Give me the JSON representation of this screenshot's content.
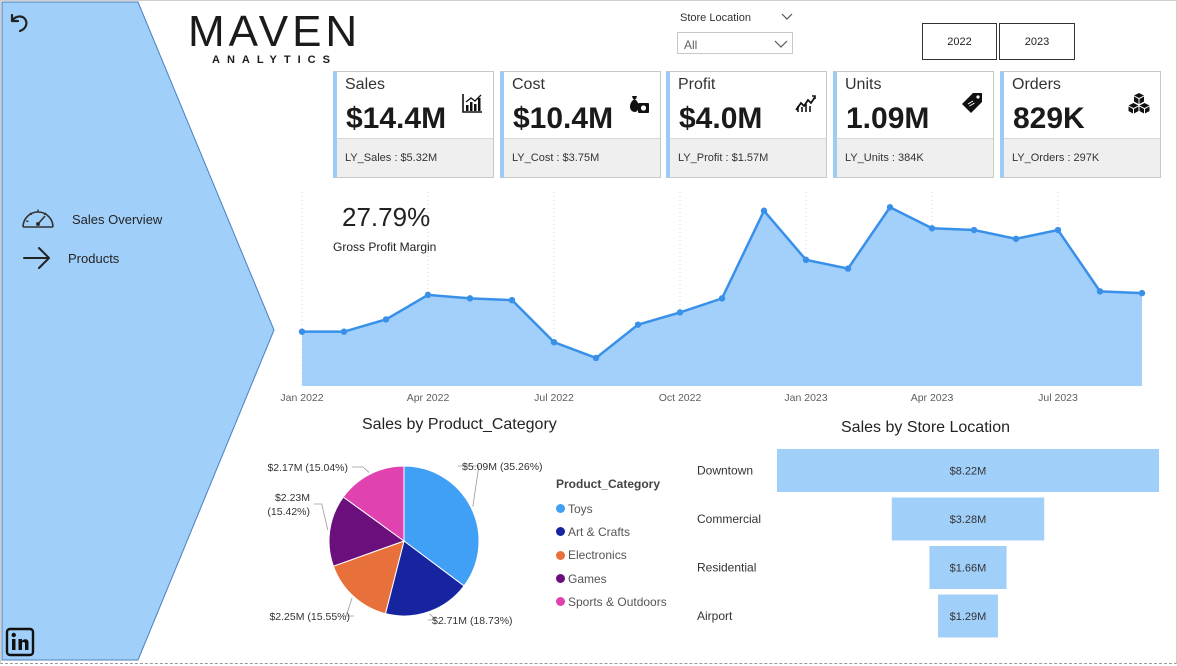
{
  "nav": {
    "items": [
      {
        "label": "Sales Overview",
        "icon": "speedometer-icon"
      },
      {
        "label": "Products",
        "icon": "arrow-right-icon"
      }
    ]
  },
  "logo": {
    "main": "MAVEN",
    "sub": "ANALYTICS"
  },
  "filters": {
    "store_location": {
      "title": "Store Location",
      "value": "All"
    },
    "years": [
      "2022",
      "2023"
    ]
  },
  "kpis": [
    {
      "label": "Sales",
      "value": "$14.4M",
      "ly": "LY_Sales : $5.32M",
      "icon": "bar-chart-icon"
    },
    {
      "label": "Cost",
      "value": "$10.4M",
      "ly": "LY_Cost : $3.75M",
      "icon": "money-bag-icon"
    },
    {
      "label": "Profit",
      "value": "$4.0M",
      "ly": "LY_Profit : $1.57M",
      "icon": "trend-chart-icon"
    },
    {
      "label": "Units",
      "value": "1.09M",
      "ly": "LY_Units : 384K",
      "icon": "price-tag-icon"
    },
    {
      "label": "Orders",
      "value": "829K",
      "ly": "LY_Orders : 297K",
      "icon": "boxes-icon"
    }
  ],
  "gross_margin": {
    "value": "27.79%",
    "label": "Gross Profit Margin"
  },
  "colors": {
    "sidebar": "#a0cffa",
    "accent": "#3990e8",
    "area": "#a3cffb",
    "bar": "#a0cffa"
  },
  "chart_data": [
    {
      "type": "area",
      "title": "",
      "x_ticks": [
        "Jan 2022",
        "Apr 2022",
        "Jul 2022",
        "Oct 2022",
        "Jan 2023",
        "Apr 2023",
        "Jul 2023"
      ],
      "x": [
        "2022-01",
        "2022-02",
        "2022-03",
        "2022-04",
        "2022-05",
        "2022-06",
        "2022-07",
        "2022-08",
        "2022-09",
        "2022-10",
        "2022-11",
        "2022-12",
        "2023-01",
        "2023-02",
        "2023-03",
        "2023-04",
        "2023-05",
        "2023-06",
        "2023-07",
        "2023-08",
        "2023-09"
      ],
      "values": [
        31,
        31,
        38,
        52,
        50,
        49,
        25,
        16,
        35,
        42,
        50,
        100,
        72,
        67,
        102,
        90,
        89,
        84,
        89,
        54,
        53
      ],
      "grid": "vertical-dotted"
    },
    {
      "type": "pie",
      "title": "Sales by Product_Category",
      "legend_title": "Product_Category",
      "legend_position": "right",
      "slices": [
        {
          "name": "Toys",
          "value": 5.09,
          "label": "$5.09M (35.26%)",
          "color": "#3fa0f5"
        },
        {
          "name": "Art & Crafts",
          "value": 2.71,
          "label": "$2.71M (18.73%)",
          "color": "#1624a0"
        },
        {
          "name": "Electronics",
          "value": 2.25,
          "label": "$2.25M (15.55%)",
          "color": "#e8703a"
        },
        {
          "name": "Games",
          "value": 2.23,
          "label_lines": [
            "$2.23M",
            "(15.42%)"
          ],
          "color": "#6b0f7d"
        },
        {
          "name": "Sports & Outdoors",
          "value": 2.17,
          "label": "$2.17M (15.04%)",
          "color": "#e043b0"
        }
      ]
    },
    {
      "type": "bar",
      "orientation": "horizontal-centered",
      "title": "Sales by Store Location",
      "categories": [
        "Downtown",
        "Commercial",
        "Residential",
        "Airport"
      ],
      "values": [
        8.22,
        3.28,
        1.66,
        1.29
      ],
      "labels": [
        "$8.22M",
        "$3.28M",
        "$1.66M",
        "$1.29M"
      ]
    }
  ]
}
